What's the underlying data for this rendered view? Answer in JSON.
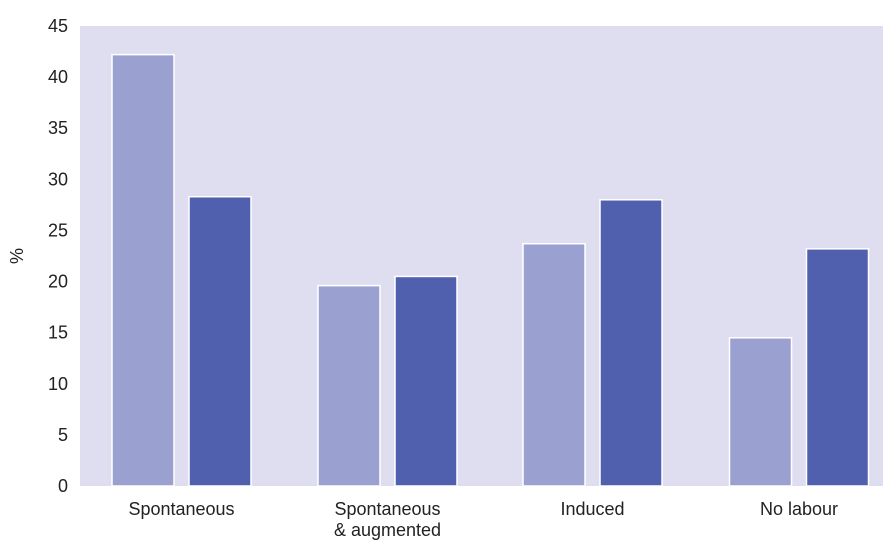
{
  "chart_data": {
    "type": "bar",
    "title": "",
    "xlabel": "",
    "ylabel": "%",
    "ylim": [
      0,
      45
    ],
    "yticks": [
      0,
      5,
      10,
      15,
      20,
      25,
      30,
      35,
      40,
      45
    ],
    "grid": false,
    "categories": [
      [
        "Spontaneous"
      ],
      [
        "Spontaneous",
        "& augmented"
      ],
      [
        "Induced"
      ],
      [
        "No labour"
      ]
    ],
    "series": [
      {
        "values": [
          42.2,
          19.6,
          23.7,
          14.5
        ],
        "color": "#9aa0d0"
      },
      {
        "values": [
          28.3,
          20.5,
          28.0,
          23.2
        ],
        "color": "#5060ae"
      }
    ],
    "plot_background": "#dfdef0"
  }
}
